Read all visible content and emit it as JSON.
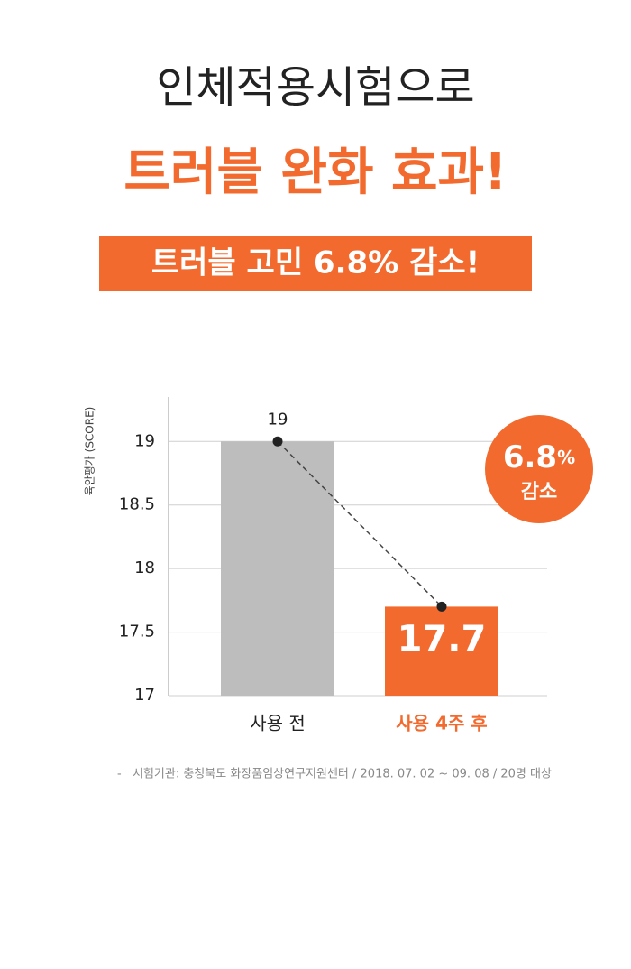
{
  "header": {
    "title": "인체적용시험으로",
    "subtitle": "트러블 완화 효과!",
    "banner": "트러블 고민 6.8% 감소!"
  },
  "chart_data": {
    "type": "bar",
    "y_label": "육안평가 (SCORE)",
    "categories": [
      "사용 전",
      "사용 4주 후"
    ],
    "values": [
      19,
      17.7
    ],
    "colors": [
      "#bdbdbd",
      "#f26a2e"
    ],
    "ylim": [
      17,
      19.35
    ],
    "yticks": [
      17,
      17.5,
      18,
      18.5,
      19
    ],
    "grid": true,
    "badge": {
      "value": "6.8",
      "unit": "%",
      "text": "감소"
    }
  },
  "footnote": {
    "marker": "-",
    "text": "시험기관: 충청북도 화장품임상연구지원센터 / 2018. 07. 02 ~ 09. 08 / 20명 대상"
  }
}
